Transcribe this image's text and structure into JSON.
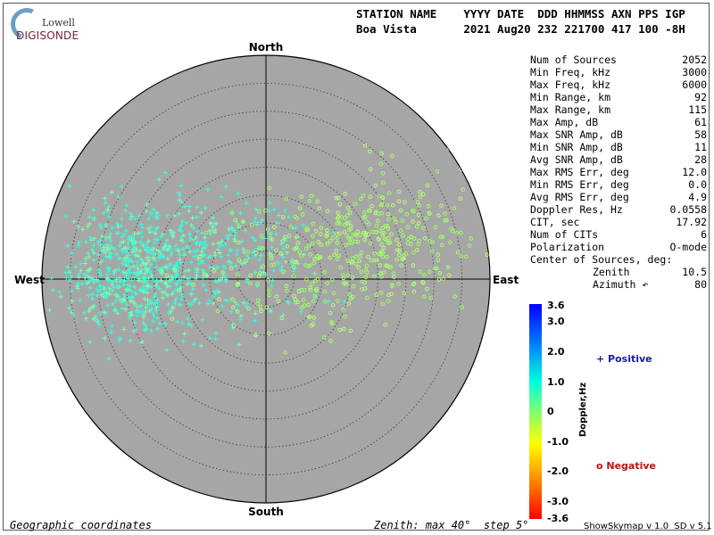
{
  "logo": {
    "top": "Lowell",
    "bottom": "DIGISONDE"
  },
  "header": {
    "line1": "STATION NAME    YYYY DATE  DDD HHMMSS AXN PPS IGP",
    "line2": "Boa Vista       2021 Aug20 232 221700 417 100 -8H"
  },
  "stats": [
    {
      "label": "Num of Sources",
      "value": "2052"
    },
    {
      "label": "Min Freq, kHz",
      "value": "3000"
    },
    {
      "label": "Max Freq, kHz",
      "value": "6000"
    },
    {
      "label": "Min Range, km",
      "value": "92"
    },
    {
      "label": "Max Range, km",
      "value": "115"
    },
    {
      "label": "Max Amp, dB",
      "value": "61"
    },
    {
      "label": "Max SNR Amp, dB",
      "value": "58"
    },
    {
      "label": "Min SNR Amp, dB",
      "value": "11"
    },
    {
      "label": "Avg SNR Amp, dB",
      "value": "28"
    },
    {
      "label": "Max RMS Err, deg",
      "value": "12.0"
    },
    {
      "label": "Min RMS Err, deg",
      "value": "0.0"
    },
    {
      "label": "Avg RMS Err, deg",
      "value": "4.9"
    },
    {
      "label": "Doppler Res, Hz",
      "value": "0.0558"
    },
    {
      "label": "CIT, sec",
      "value": "17.92"
    },
    {
      "label": "Num of CITs",
      "value": "6"
    },
    {
      "label": "Polarization",
      "value": "O-mode"
    },
    {
      "label": "Center of Sources, deg:",
      "value": ""
    },
    {
      "label": "Zenith",
      "value": "10.5",
      "indent": true
    },
    {
      "label": "Azimuth ↶",
      "value": "80",
      "indent": true
    }
  ],
  "legend": {
    "positive": "+ Positive",
    "negative": "o Negative",
    "doppler_label": "Doppler,Hz",
    "ticks": [
      "3.6",
      "3.0",
      "2.0",
      "1.0",
      "0",
      "-1.0",
      "-2.0",
      "-3.0",
      "-3.6"
    ],
    "colors": [
      "#0000ff",
      "#00aaff",
      "#00ffcc",
      "#7dff7d",
      "#ffff00",
      "#ff9900",
      "#ff0000"
    ]
  },
  "directions": {
    "north": "North",
    "south": "South",
    "east": "East",
    "west": "West"
  },
  "footer": {
    "left": "Geographic coordinates",
    "center": "Zenith: max 40°  step 5°",
    "right": "ShowSkymap v 1.0  SD v 5.1"
  },
  "colors": {
    "disk": "#a6a6a6",
    "positive_marker": "#44ffd0",
    "negative_marker": "#9cff64"
  },
  "chart_data": {
    "type": "scatter",
    "title": "",
    "coordinates": "geographic (azimuth, zenith angle)",
    "zenith_max_deg": 40,
    "zenith_step_deg": 5,
    "doppler_range_hz": [
      -3.6,
      3.6
    ],
    "center_of_sources": {
      "zenith_deg": 10.5,
      "azimuth_deg": 80
    },
    "num_sources": 2052,
    "clusters": [
      {
        "name": "Positive",
        "marker": "+",
        "doppler_hz_approx": 1.1,
        "east_west_deg_center": -23,
        "north_south_deg_center": 1,
        "spread_deg": 7,
        "count_drawn": 650
      },
      {
        "name": "Positive",
        "marker": "+",
        "doppler_hz_approx": 0.9,
        "east_west_deg_center": -8,
        "north_south_deg_center": 4,
        "spread_deg": 8,
        "count_drawn": 260
      },
      {
        "name": "Negative",
        "marker": "o",
        "doppler_hz_approx": 0.3,
        "east_west_deg_center": 20,
        "north_south_deg_center": 7,
        "spread_deg": 8,
        "count_drawn": 320
      },
      {
        "name": "Negative",
        "marker": "o",
        "doppler_hz_approx": 0.3,
        "east_west_deg_center": 3,
        "north_south_deg_center": 0,
        "spread_deg": 8,
        "count_drawn": 130
      }
    ]
  }
}
